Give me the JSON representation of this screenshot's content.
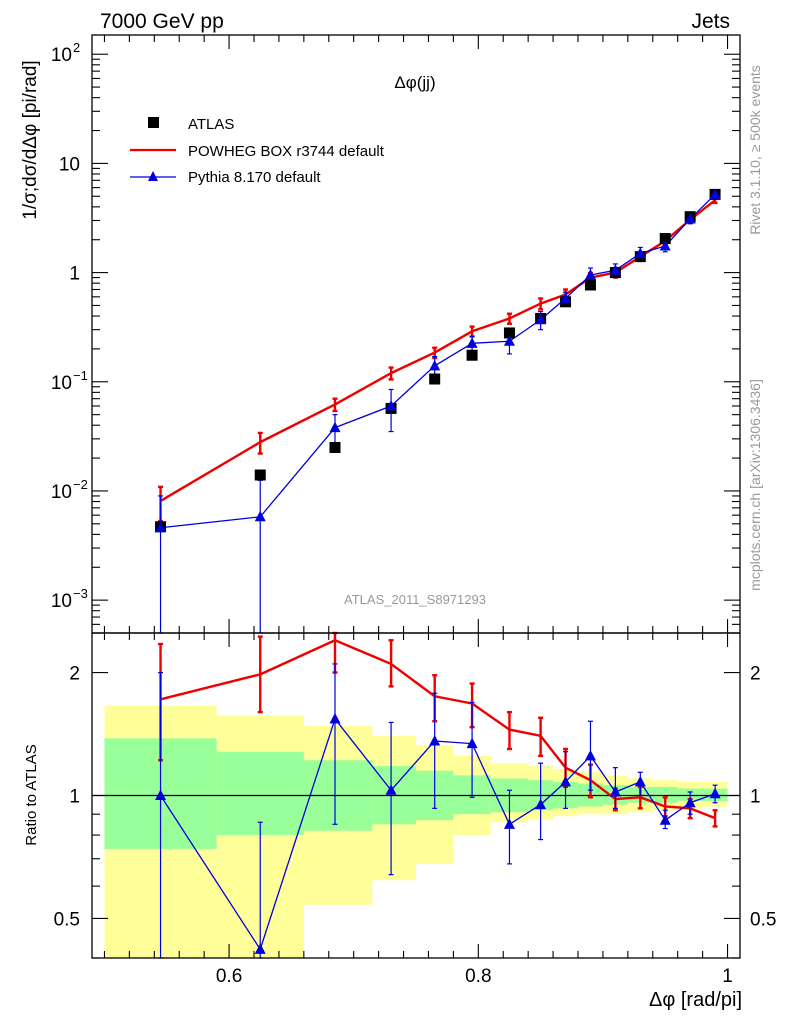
{
  "header": {
    "left": "7000 GeV pp",
    "right": "Jets"
  },
  "side_labels": {
    "rivet": "Rivet 3.1.10, ≥ 500k events",
    "mcplots": "mcplots.cern.ch [arXiv:1306.3436]"
  },
  "colors": {
    "atlas": "#000000",
    "powheg": "#ee0000",
    "pythia": "#0000dd",
    "band_outer": "#ffff99",
    "band_inner": "#99ff99"
  },
  "chart_data": [
    {
      "type": "line",
      "title": "Δφ(jj)",
      "watermark": "ATLAS_2011_S8971293",
      "ylabel": "1/σ;dσ/dΔφ [pi/rad]",
      "yscale": "log",
      "xlim": [
        0.49,
        1.01
      ],
      "ylim": [
        0.0005,
        150
      ],
      "yticks": [
        {
          "value": 0.001,
          "base": "10",
          "exp": "−3"
        },
        {
          "value": 0.01,
          "base": "10",
          "exp": "−2"
        },
        {
          "value": 0.1,
          "base": "10",
          "exp": "−1"
        },
        {
          "value": 1,
          "base": "1",
          "exp": ""
        },
        {
          "value": 10,
          "base": "10",
          "exp": ""
        },
        {
          "value": 100,
          "base": "10",
          "exp": "2"
        }
      ],
      "legend_position": "top-left",
      "legend": [
        "ATLAS",
        "POWHEG BOX r3744 default",
        "Pythia 8.170 default"
      ],
      "series": [
        {
          "name": "ATLAS",
          "style": "markers-square",
          "x": [
            0.545,
            0.625,
            0.685,
            0.73,
            0.765,
            0.795,
            0.825,
            0.85,
            0.87,
            0.89,
            0.91,
            0.93,
            0.95,
            0.97,
            0.99
          ],
          "y": [
            0.0047,
            0.014,
            0.025,
            0.057,
            0.106,
            0.175,
            0.28,
            0.38,
            0.54,
            0.77,
            1.0,
            1.4,
            2.05,
            3.25,
            5.2
          ]
        },
        {
          "name": "POWHEG BOX r3744 default",
          "style": "line",
          "x": [
            0.545,
            0.625,
            0.685,
            0.73,
            0.765,
            0.795,
            0.825,
            0.85,
            0.87,
            0.89,
            0.91,
            0.93,
            0.95,
            0.97,
            0.99
          ],
          "y": [
            0.0081,
            0.028,
            0.062,
            0.12,
            0.185,
            0.29,
            0.38,
            0.52,
            0.63,
            0.9,
            1.0,
            1.4,
            1.95,
            3.05,
            4.6
          ],
          "err": [
            0.0028,
            0.006,
            0.008,
            0.015,
            0.02,
            0.03,
            0.04,
            0.06,
            0.07,
            0.09,
            0.1,
            0.12,
            0.15,
            0.2,
            0.25
          ]
        },
        {
          "name": "Pythia 8.170 default",
          "style": "line-triangle",
          "x": [
            0.545,
            0.625,
            0.685,
            0.73,
            0.765,
            0.795,
            0.825,
            0.85,
            0.87,
            0.89,
            0.91,
            0.93,
            0.95,
            0.97,
            0.99
          ],
          "y": [
            0.0046,
            0.0058,
            0.038,
            0.06,
            0.14,
            0.225,
            0.235,
            0.37,
            0.58,
            0.95,
            1.05,
            1.5,
            1.75,
            3.1,
            5.2
          ],
          "ylo": [
            0.0003,
            0.0003,
            0.026,
            0.035,
            0.11,
            0.19,
            0.18,
            0.3,
            0.5,
            0.8,
            0.9,
            1.3,
            1.55,
            2.8,
            4.8
          ],
          "yhi": [
            0.009,
            0.0125,
            0.05,
            0.085,
            0.17,
            0.26,
            0.29,
            0.44,
            0.66,
            1.1,
            1.2,
            1.7,
            1.95,
            3.4,
            5.6
          ]
        }
      ]
    },
    {
      "type": "line",
      "ylabel": "Ratio to ATLAS",
      "xlabel": "Δφ [rad/pi]",
      "yscale": "log",
      "xlim": [
        0.49,
        1.01
      ],
      "ylim": [
        0.4,
        2.5
      ],
      "xticks": [
        "0.6",
        "0.8",
        "1"
      ],
      "yticks": [
        "0.5",
        "1",
        "2"
      ],
      "bands": {
        "x_edges": [
          0.5,
          0.59,
          0.66,
          0.715,
          0.75,
          0.78,
          0.81,
          0.84,
          0.86,
          0.88,
          0.9,
          0.92,
          0.94,
          0.96,
          0.98,
          1.0
        ],
        "outer_lo": [
          0.4,
          0.4,
          0.54,
          0.62,
          0.68,
          0.8,
          0.86,
          0.87,
          0.89,
          0.9,
          0.9,
          0.91,
          0.92,
          0.93,
          0.94
        ],
        "outer_hi": [
          1.66,
          1.57,
          1.48,
          1.4,
          1.33,
          1.25,
          1.2,
          1.18,
          1.16,
          1.14,
          1.12,
          1.1,
          1.09,
          1.08,
          1.08
        ],
        "inner_lo": [
          0.74,
          0.8,
          0.82,
          0.85,
          0.87,
          0.9,
          0.91,
          0.92,
          0.93,
          0.94,
          0.95,
          0.96,
          0.96,
          0.97,
          0.97
        ],
        "inner_hi": [
          1.38,
          1.28,
          1.22,
          1.18,
          1.15,
          1.12,
          1.1,
          1.09,
          1.08,
          1.07,
          1.06,
          1.05,
          1.05,
          1.04,
          1.04
        ]
      },
      "series": [
        {
          "name": "POWHEG BOX r3744 default",
          "style": "line",
          "x": [
            0.545,
            0.625,
            0.685,
            0.73,
            0.765,
            0.795,
            0.825,
            0.85,
            0.87,
            0.89,
            0.91,
            0.93,
            0.95,
            0.97,
            0.99
          ],
          "y": [
            1.72,
            1.98,
            2.4,
            2.1,
            1.75,
            1.68,
            1.45,
            1.4,
            1.17,
            1.09,
            0.98,
            0.99,
            0.94,
            0.93,
            0.88
          ],
          "ylo": [
            1.22,
            1.6,
            2.0,
            1.85,
            1.52,
            1.47,
            1.3,
            1.25,
            1.05,
            0.99,
            0.92,
            0.93,
            0.89,
            0.88,
            0.84
          ],
          "yhi": [
            2.35,
            2.45,
            2.5,
            2.4,
            1.97,
            1.88,
            1.6,
            1.55,
            1.3,
            1.19,
            1.04,
            1.05,
            0.99,
            0.98,
            0.92
          ]
        },
        {
          "name": "Pythia 8.170 default",
          "style": "line-triangle",
          "x": [
            0.545,
            0.625,
            0.685,
            0.73,
            0.765,
            0.795,
            0.825,
            0.85,
            0.87,
            0.89,
            0.91,
            0.93,
            0.95,
            0.97,
            0.99
          ],
          "y": [
            1.0,
            0.42,
            1.54,
            1.03,
            1.36,
            1.34,
            0.85,
            0.95,
            1.08,
            1.25,
            1.02,
            1.08,
            0.87,
            0.96,
            1.01
          ],
          "ylo": [
            0.4,
            0.4,
            0.85,
            0.64,
            0.93,
            0.99,
            0.68,
            0.78,
            0.93,
            1.03,
            0.93,
            1.0,
            0.83,
            0.9,
            0.96
          ],
          "yhi": [
            2.0,
            0.86,
            2.1,
            1.51,
            1.78,
            1.69,
            1.03,
            1.2,
            1.28,
            1.52,
            1.17,
            1.14,
            0.92,
            1.02,
            1.06
          ]
        }
      ]
    }
  ]
}
